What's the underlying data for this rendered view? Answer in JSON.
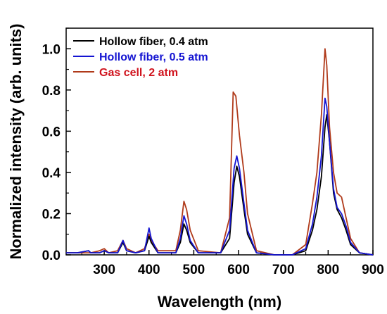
{
  "chart_data": {
    "type": "line",
    "xlabel": "Wavelength (nm)",
    "ylabel": "Normalized intensity (arb. units)",
    "xlim": [
      215,
      900
    ],
    "ylim": [
      0,
      1.1
    ],
    "x_ticks": [
      300,
      400,
      500,
      600,
      700,
      800,
      900
    ],
    "y_ticks": [
      0.0,
      0.2,
      0.4,
      0.6,
      0.8,
      1.0
    ],
    "x_tick_labels": [
      "300",
      "400",
      "500",
      "600",
      "700",
      "800",
      "900"
    ],
    "y_tick_labels": [
      "0.0",
      "0.2",
      "0.4",
      "0.6",
      "0.8",
      "1.0"
    ],
    "grid": false,
    "legend_position": "top-left",
    "series": [
      {
        "name": "Hollow fiber, 0.4 atm",
        "color": "#000000",
        "x": [
          215,
          240,
          265,
          270,
          290,
          300,
          310,
          330,
          342,
          350,
          370,
          390,
          400,
          405,
          420,
          460,
          470,
          478,
          484,
          492,
          510,
          560,
          580,
          590,
          596,
          602,
          612,
          620,
          640,
          680,
          720,
          750,
          765,
          775,
          785,
          793,
          797,
          803,
          812,
          820,
          830,
          840,
          850,
          870,
          900
        ],
        "y": [
          0.01,
          0.01,
          0.02,
          0.01,
          0.01,
          0.02,
          0.01,
          0.01,
          0.06,
          0.02,
          0.01,
          0.02,
          0.09,
          0.06,
          0.01,
          0.01,
          0.06,
          0.15,
          0.12,
          0.06,
          0.01,
          0.01,
          0.08,
          0.35,
          0.43,
          0.38,
          0.22,
          0.1,
          0.01,
          0.0,
          0.0,
          0.02,
          0.12,
          0.22,
          0.38,
          0.62,
          0.68,
          0.55,
          0.3,
          0.22,
          0.18,
          0.12,
          0.05,
          0.01,
          0.0
        ]
      },
      {
        "name": "Hollow fiber, 0.5 atm",
        "color": "#1414d2",
        "x": [
          215,
          240,
          265,
          270,
          290,
          300,
          310,
          330,
          342,
          350,
          370,
          390,
          400,
          405,
          420,
          460,
          470,
          478,
          484,
          492,
          510,
          560,
          580,
          590,
          596,
          602,
          612,
          620,
          640,
          680,
          720,
          750,
          765,
          775,
          785,
          793,
          797,
          803,
          812,
          820,
          830,
          840,
          850,
          870,
          900
        ],
        "y": [
          0.01,
          0.01,
          0.02,
          0.01,
          0.01,
          0.02,
          0.01,
          0.01,
          0.07,
          0.02,
          0.01,
          0.02,
          0.13,
          0.08,
          0.01,
          0.01,
          0.08,
          0.19,
          0.15,
          0.07,
          0.01,
          0.01,
          0.12,
          0.42,
          0.48,
          0.42,
          0.25,
          0.12,
          0.01,
          0.0,
          0.0,
          0.03,
          0.15,
          0.28,
          0.48,
          0.76,
          0.72,
          0.55,
          0.32,
          0.23,
          0.2,
          0.14,
          0.06,
          0.01,
          0.0
        ]
      },
      {
        "name": "Gas cell, 2 atm",
        "color": "#b03a1a",
        "x": [
          215,
          240,
          265,
          270,
          290,
          300,
          310,
          330,
          342,
          350,
          370,
          390,
          400,
          405,
          420,
          460,
          470,
          478,
          484,
          492,
          510,
          560,
          580,
          588,
          594,
          602,
          612,
          620,
          640,
          680,
          720,
          750,
          765,
          775,
          785,
          793,
          797,
          803,
          812,
          820,
          830,
          840,
          850,
          870,
          900
        ],
        "y": [
          0.01,
          0.01,
          0.01,
          0.01,
          0.02,
          0.03,
          0.01,
          0.02,
          0.07,
          0.03,
          0.01,
          0.03,
          0.1,
          0.07,
          0.02,
          0.02,
          0.12,
          0.26,
          0.22,
          0.12,
          0.02,
          0.01,
          0.18,
          0.79,
          0.77,
          0.58,
          0.4,
          0.2,
          0.02,
          0.0,
          0.0,
          0.05,
          0.25,
          0.4,
          0.68,
          1.0,
          0.92,
          0.62,
          0.4,
          0.3,
          0.28,
          0.18,
          0.08,
          0.01,
          0.0
        ]
      }
    ]
  }
}
